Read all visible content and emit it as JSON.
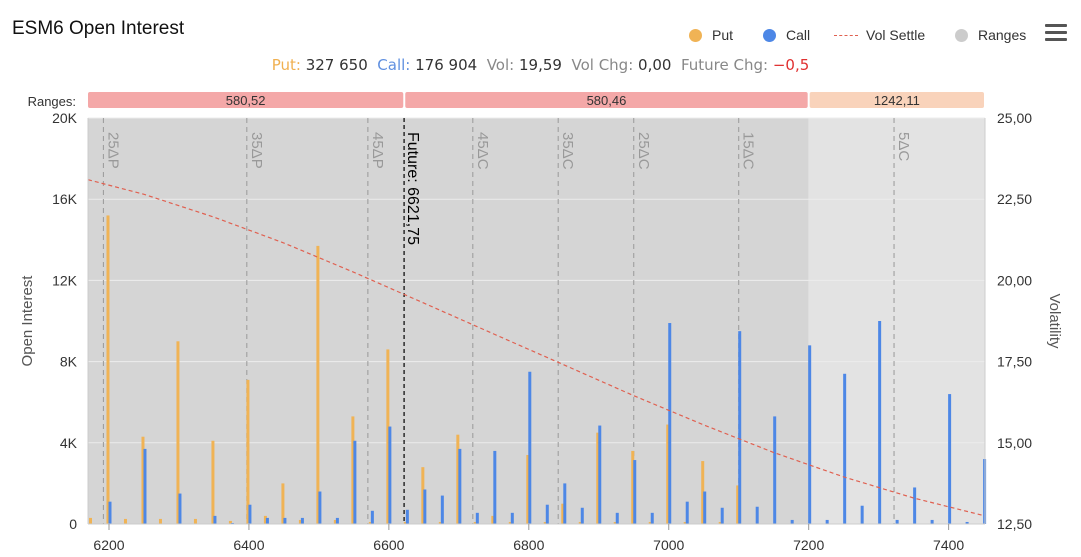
{
  "title": "ESM6 Open Interest",
  "legend": [
    {
      "label": "Put",
      "type": "dot",
      "color": "#f0b355"
    },
    {
      "label": "Call",
      "type": "dot",
      "color": "#4d87e6"
    },
    {
      "label": "Vol Settle",
      "type": "dash",
      "color": "#e06050"
    },
    {
      "label": "Ranges",
      "type": "dot",
      "color": "#cccccc"
    }
  ],
  "summary": {
    "put_label": "Put:",
    "put_value": "327 650",
    "call_label": "Call:",
    "call_value": "176 904",
    "vol_label": "Vol:",
    "vol_value": "19,59",
    "volchg_label": "Vol Chg:",
    "volchg_value": "0,00",
    "futchg_label": "Future Chg:",
    "futchg_value": "−0,5"
  },
  "chart_data": {
    "type": "bar",
    "ylabel": "Open Interest",
    "y2label": "Volatility",
    "xlim": [
      6170,
      7452
    ],
    "ylim": [
      0,
      20000
    ],
    "y2lim": [
      12.5,
      25
    ],
    "xticks": [
      6200,
      6400,
      6600,
      6800,
      7000,
      7200,
      7400
    ],
    "xtick_labels": [
      "6200",
      "6400",
      "6600",
      "6800",
      "7000",
      "7200",
      "7400"
    ],
    "yticks": [
      0,
      4000,
      8000,
      12000,
      16000,
      20000
    ],
    "ytick_labels": [
      "0",
      "4K",
      "8K",
      "12K",
      "16K",
      "20K"
    ],
    "y2ticks": [
      12.5,
      15,
      17.5,
      20,
      22.5,
      25
    ],
    "y2tick_labels": [
      "12,50",
      "15,00",
      "17,50",
      "20,00",
      "22,50",
      "25,00"
    ],
    "ranges_label": "Ranges:",
    "ranges": [
      {
        "label": "580,52",
        "from": 6170,
        "to": 6622,
        "color": "#f4a8a8"
      },
      {
        "label": "580,46",
        "from": 6622,
        "to": 7200,
        "color": "#f4a8a8"
      },
      {
        "label": "1242,11",
        "from": 7200,
        "to": 7452,
        "color": "#f9d3bb"
      }
    ],
    "shade_regions": [
      {
        "from": 6170,
        "to": 7200,
        "color": "#d5d5d5"
      },
      {
        "from": 7200,
        "to": 7452,
        "color": "#e3e3e3"
      }
    ],
    "delta_lines": [
      {
        "label": "25ΔP",
        "x": 6192
      },
      {
        "label": "35ΔP",
        "x": 6397
      },
      {
        "label": "45ΔP",
        "x": 6570
      },
      {
        "label": "45ΔC",
        "x": 6720
      },
      {
        "label": "35ΔC",
        "x": 6842
      },
      {
        "label": "25ΔC",
        "x": 6950
      },
      {
        "label": "15ΔC",
        "x": 7100
      },
      {
        "label": "5ΔC",
        "x": 7322
      }
    ],
    "future": {
      "label": "Future: 6621,75",
      "x": 6621.75
    },
    "series": [
      {
        "name": "Put",
        "color": "#f0b355",
        "x": [
          6175,
          6200,
          6225,
          6250,
          6275,
          6300,
          6325,
          6350,
          6375,
          6400,
          6425,
          6450,
          6475,
          6500,
          6525,
          6550,
          6575,
          6600,
          6625,
          6650,
          6675,
          6700,
          6725,
          6750,
          6775,
          6800,
          6825,
          6850,
          6875,
          6900,
          6925,
          6950,
          6975,
          7000,
          7025,
          7050,
          7075,
          7100
        ],
        "values": [
          300,
          15200,
          250,
          4300,
          250,
          9000,
          250,
          4100,
          150,
          7100,
          400,
          2000,
          200,
          13700,
          200,
          5300,
          100,
          8600,
          100,
          2800,
          100,
          4400,
          100,
          400,
          100,
          3400,
          100,
          1000,
          100,
          4500,
          100,
          3600,
          100,
          4900,
          100,
          3100,
          100,
          1900
        ]
      },
      {
        "name": "Call",
        "color": "#4d87e6",
        "x": [
          6200,
          6250,
          6300,
          6350,
          6375,
          6400,
          6425,
          6450,
          6475,
          6500,
          6525,
          6550,
          6575,
          6600,
          6625,
          6650,
          6675,
          6700,
          6725,
          6750,
          6775,
          6800,
          6825,
          6850,
          6875,
          6900,
          6925,
          6950,
          6975,
          7000,
          7025,
          7050,
          7075,
          7100,
          7125,
          7150,
          7175,
          7200,
          7225,
          7250,
          7275,
          7300,
          7325,
          7350,
          7375,
          7400,
          7425,
          7450
        ],
        "values": [
          1100,
          3700,
          1500,
          400,
          50,
          950,
          300,
          300,
          300,
          1600,
          300,
          4100,
          650,
          4800,
          700,
          1700,
          1400,
          3700,
          550,
          3600,
          550,
          7500,
          950,
          2000,
          800,
          4850,
          550,
          3150,
          550,
          9900,
          1100,
          1600,
          800,
          9500,
          850,
          5300,
          200,
          8800,
          200,
          7400,
          900,
          10000,
          200,
          1800,
          200,
          6400,
          100,
          3200
        ]
      }
    ],
    "vol_settle": {
      "name": "Vol Settle",
      "color": "#e06050",
      "x": [
        6170,
        6250,
        6350,
        6450,
        6550,
        6650,
        6750,
        6850,
        6950,
        7050,
        7150,
        7250,
        7350,
        7452
      ],
      "values": [
        23.1,
        22.65,
        21.95,
        21.15,
        20.25,
        19.3,
        18.35,
        17.4,
        16.45,
        15.55,
        14.7,
        13.95,
        13.3,
        12.75
      ]
    }
  }
}
